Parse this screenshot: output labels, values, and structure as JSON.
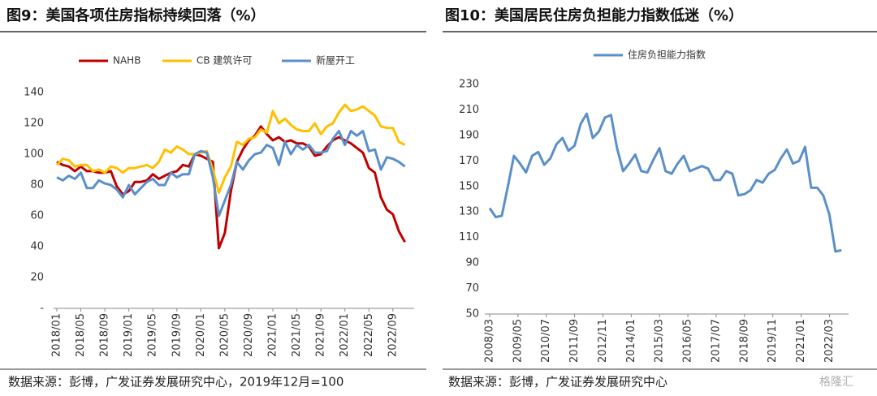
{
  "chart_data": [
    {
      "type": "line",
      "title": "图9：美国各项住房指标持续回落（%）",
      "categories": [
        "2018/01",
        null,
        null,
        null,
        "2018/05",
        null,
        null,
        null,
        "2018/09",
        null,
        null,
        null,
        "2019/01",
        null,
        null,
        null,
        "2019/05",
        null,
        null,
        null,
        "2019/09",
        null,
        null,
        null,
        "2020/01",
        null,
        null,
        null,
        "2020/05",
        null,
        null,
        null,
        "2020/09",
        null,
        null,
        null,
        "2021/01",
        null,
        null,
        null,
        "2021/05",
        null,
        null,
        null,
        "2021/09",
        null,
        null,
        null,
        "2022/01",
        null,
        null,
        null,
        "2022/05",
        null,
        null,
        null,
        "2022/09",
        null,
        null
      ],
      "series": [
        {
          "name": "NAHB",
          "color": "#c00000",
          "values": [
            95,
            93,
            92,
            89,
            92,
            89,
            89,
            88,
            88,
            89,
            79,
            74,
            76,
            82,
            82,
            83,
            87,
            84,
            86,
            88,
            89,
            93,
            92,
            100,
            99,
            97,
            95,
            39,
            49,
            76,
            95,
            103,
            109,
            112,
            118,
            113,
            109,
            111,
            108,
            109,
            107,
            107,
            105,
            99,
            100,
            105,
            109,
            111,
            109,
            107,
            104,
            101,
            91,
            88,
            72,
            64,
            61,
            50,
            43
          ]
        },
        {
          "name": "CB 建筑许可",
          "color": "#ffc000",
          "values": [
            93,
            97,
            96,
            92,
            93,
            93,
            89,
            90,
            88,
            92,
            91,
            88,
            91,
            91,
            92,
            93,
            91,
            95,
            103,
            101,
            105,
            103,
            100,
            100,
            101,
            102,
            90,
            75,
            85,
            92,
            108,
            106,
            110,
            111,
            116,
            114,
            128,
            120,
            123,
            119,
            116,
            115,
            115,
            120,
            113,
            118,
            120,
            127,
            132,
            128,
            129,
            131,
            128,
            125,
            118,
            117,
            117,
            108,
            106
          ]
        },
        {
          "name": "新屋开工",
          "color": "#5b8fc9",
          "values": [
            85,
            83,
            86,
            84,
            88,
            78,
            78,
            83,
            81,
            80,
            77,
            72,
            80,
            74,
            78,
            82,
            84,
            80,
            80,
            88,
            85,
            87,
            87,
            100,
            102,
            101,
            85,
            60,
            70,
            80,
            95,
            90,
            96,
            100,
            101,
            106,
            104,
            93,
            108,
            100,
            106,
            103,
            106,
            101,
            101,
            102,
            110,
            115,
            106,
            115,
            112,
            115,
            102,
            103,
            90,
            98,
            97,
            95,
            92
          ]
        }
      ],
      "ylim": [
        0,
        140
      ],
      "yticks": [
        {
          "value": 0,
          "label": "-"
        },
        20,
        40,
        60,
        80,
        100,
        120,
        140
      ],
      "legend": "top",
      "grid": false,
      "source": "数据来源：彭博，广发证券发展研究中心，2019年12月=100"
    },
    {
      "type": "line",
      "title": "图10：美国居民住房负担能力指数低迷（%）",
      "x_labels": [
        "2008/03",
        "2009/05",
        "2010/07",
        "2011/09",
        "2012/11",
        "2014/01",
        "2015/03",
        "2016/05",
        "2017/07",
        "2018/09",
        "2019/11",
        "2021/01",
        "2022/03"
      ],
      "series": [
        {
          "name": "住房负担能力指数",
          "color": "#5b8fc9",
          "values": [
            133,
            126,
            127,
            150,
            174,
            168,
            161,
            174,
            177,
            167,
            172,
            183,
            188,
            178,
            182,
            199,
            207,
            188,
            193,
            204,
            206,
            180,
            162,
            168,
            175,
            162,
            161,
            171,
            180,
            162,
            160,
            168,
            174,
            162,
            164,
            166,
            164,
            155,
            155,
            162,
            160,
            143,
            144,
            147,
            155,
            153,
            160,
            163,
            172,
            179,
            168,
            170,
            181,
            149,
            149,
            143,
            128,
            99,
            100
          ]
        }
      ],
      "ylim": [
        50,
        230
      ],
      "yticks": [
        50,
        70,
        90,
        110,
        130,
        150,
        170,
        190,
        210,
        230
      ],
      "legend": "top",
      "grid": false,
      "source": "数据来源：彭博，广发证券发展研究中心",
      "watermark": "格隆汇"
    }
  ]
}
